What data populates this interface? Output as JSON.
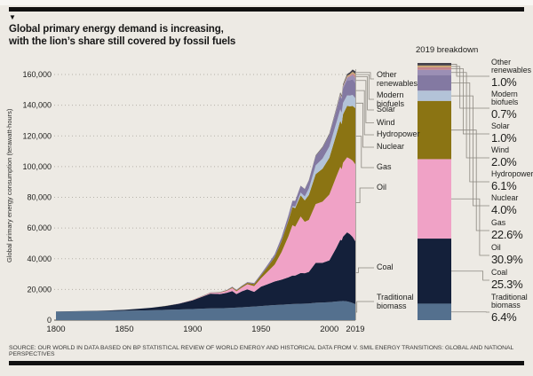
{
  "header": {
    "marker": "▼",
    "title_line1": "Global primary energy demand is increasing,",
    "title_line2": "with the lion’s share still covered by fossil fuels"
  },
  "footer": {
    "source": "SOURCE: OUR WORLD IN DATA BASED ON BP STATISTICAL REVIEW OF WORLD ENERGY AND HISTORICAL DATA FROM V. SMIL ENERGY TRANSITIONS: GLOBAL AND NATIONAL PERSPECTIVES"
  },
  "chart_data": {
    "type": "area",
    "stacked": true,
    "title": "Global primary energy demand is increasing, with the lion’s share still covered by fossil fuels",
    "xlabel": "",
    "ylabel": "Global primary energy consumption (terawatt-hours)",
    "ylim": [
      0,
      160000
    ],
    "xlim": [
      1800,
      2019
    ],
    "grid": "dotted-horizontal",
    "y_tick_labels": [
      "0",
      "20,000",
      "40,000",
      "60,000",
      "80,000",
      "100,000",
      "120,000",
      "140,000",
      "160,000"
    ],
    "y_tick_values": [
      0,
      20000,
      40000,
      60000,
      80000,
      100000,
      120000,
      140000,
      160000
    ],
    "x_tick_labels": [
      "1800",
      "1850",
      "1900",
      "1950",
      "2000",
      "2019"
    ],
    "x_tick_values": [
      1800,
      1850,
      1900,
      1950,
      2000,
      2019
    ],
    "years": [
      1800,
      1810,
      1820,
      1830,
      1840,
      1850,
      1860,
      1870,
      1880,
      1890,
      1900,
      1910,
      1913,
      1920,
      1925,
      1929,
      1932,
      1936,
      1940,
      1945,
      1950,
      1955,
      1960,
      1965,
      1970,
      1973,
      1975,
      1979,
      1982,
      1985,
      1990,
      1995,
      2000,
      2005,
      2008,
      2009,
      2010,
      2013,
      2015,
      2017,
      2019
    ],
    "series": [
      {
        "name": "Traditional biomass",
        "color": "#54708e",
        "values": [
          5556,
          5650,
          5750,
          5860,
          5980,
          6111,
          6280,
          6460,
          6700,
          6960,
          7222,
          7560,
          7660,
          7700,
          7900,
          8050,
          8150,
          8350,
          8600,
          8900,
          9200,
          9500,
          9800,
          10050,
          10300,
          10450,
          10550,
          10700,
          10750,
          10800,
          11300,
          11500,
          11700,
          12100,
          12350,
          12400,
          12500,
          12200,
          11800,
          11200,
          10400
        ]
      },
      {
        "name": "Coal",
        "color": "#14203a",
        "values": [
          97,
          120,
          160,
          240,
          360,
          569,
          1060,
          1640,
          2470,
          3700,
          5730,
          8660,
          9600,
          9300,
          9900,
          10900,
          8800,
          10400,
          11500,
          9500,
          12600,
          14000,
          15400,
          16300,
          17600,
          18600,
          18500,
          20000,
          19800,
          20600,
          26000,
          25800,
          27200,
          34800,
          40000,
          39500,
          41900,
          45000,
          44200,
          43000,
          41000
        ]
      },
      {
        "name": "Oil",
        "color": "#f0a2c6",
        "values": [
          0,
          0,
          0,
          0,
          0,
          0,
          2,
          10,
          30,
          90,
          180,
          410,
          560,
          890,
          1300,
          1900,
          1800,
          2500,
          3300,
          3800,
          5400,
          8200,
          11000,
          17900,
          26600,
          32800,
          31800,
          36800,
          33500,
          33900,
          38300,
          39900,
          42900,
          46400,
          47500,
          46400,
          48100,
          48900,
          49100,
          49700,
          50100
        ]
      },
      {
        "name": "Gas",
        "color": "#8b7413",
        "values": [
          0,
          0,
          0,
          0,
          0,
          0,
          0,
          0,
          10,
          30,
          64,
          140,
          180,
          230,
          350,
          550,
          600,
          750,
          870,
          1300,
          2000,
          3200,
          4800,
          7100,
          10300,
          11800,
          12100,
          13800,
          13900,
          16200,
          19500,
          21400,
          24000,
          27300,
          30000,
          29400,
          31600,
          33500,
          34200,
          35600,
          36600
        ]
      },
      {
        "name": "Nuclear",
        "color": "#b3c3d8",
        "values": [
          0,
          0,
          0,
          0,
          0,
          0,
          0,
          0,
          0,
          0,
          0,
          0,
          0,
          0,
          0,
          0,
          0,
          0,
          0,
          0,
          0,
          0,
          0,
          72,
          220,
          580,
          1000,
          1800,
          2600,
          4200,
          5700,
          6600,
          7300,
          7600,
          7500,
          7300,
          7400,
          6800,
          7000,
          7200,
          6500
        ]
      },
      {
        "name": "Hydropower",
        "color": "#8379a2",
        "values": [
          0,
          0,
          0,
          0,
          0,
          0,
          0,
          0,
          10,
          20,
          50,
          120,
          150,
          190,
          280,
          380,
          420,
          470,
          520,
          700,
          930,
          1400,
          1900,
          2500,
          3100,
          3500,
          3700,
          4400,
          4700,
          5200,
          6100,
          7000,
          7600,
          8300,
          9000,
          9100,
          9500,
          9900,
          10000,
          10200,
          9900
        ]
      },
      {
        "name": "Wind",
        "color": "#9b8fb5",
        "values": [
          0,
          0,
          0,
          0,
          0,
          0,
          0,
          0,
          0,
          0,
          0,
          0,
          0,
          0,
          0,
          0,
          0,
          0,
          0,
          0,
          0,
          0,
          0,
          0,
          0,
          0,
          0,
          0,
          0,
          0,
          10,
          30,
          90,
          290,
          620,
          740,
          960,
          1700,
          2300,
          2800,
          3240
        ]
      },
      {
        "name": "Solar",
        "color": "#c4858e",
        "values": [
          0,
          0,
          0,
          0,
          0,
          0,
          0,
          0,
          0,
          0,
          0,
          0,
          0,
          0,
          0,
          0,
          0,
          0,
          0,
          0,
          0,
          0,
          0,
          0,
          0,
          0,
          0,
          0,
          0,
          0,
          0,
          0,
          0,
          10,
          30,
          50,
          90,
          350,
          680,
          1100,
          1620
        ]
      },
      {
        "name": "Modern biofuels",
        "color": "#cba672",
        "values": [
          0,
          0,
          0,
          0,
          0,
          0,
          0,
          0,
          0,
          0,
          0,
          0,
          0,
          0,
          0,
          0,
          0,
          0,
          0,
          0,
          0,
          0,
          0,
          0,
          0,
          0,
          0,
          0,
          0,
          60,
          110,
          140,
          180,
          320,
          570,
          620,
          720,
          870,
          950,
          1040,
          1130
        ]
      },
      {
        "name": "Other renewables",
        "color": "#44414b",
        "values": [
          0,
          0,
          0,
          0,
          0,
          0,
          0,
          0,
          0,
          0,
          0,
          0,
          0,
          0,
          0,
          0,
          0,
          0,
          0,
          0,
          0,
          0,
          0,
          0,
          30,
          50,
          60,
          90,
          130,
          200,
          360,
          450,
          560,
          700,
          820,
          850,
          900,
          1100,
          1250,
          1430,
          1620
        ]
      }
    ]
  },
  "breakdown": {
    "title": "2019 breakdown",
    "items": [
      {
        "name": "Other renewables",
        "pct": 1.0,
        "pct_label": "1.0%",
        "color": "#44414b"
      },
      {
        "name": "Modern biofuels",
        "pct": 0.7,
        "pct_label": "0.7%",
        "color": "#cba672"
      },
      {
        "name": "Solar",
        "pct": 1.0,
        "pct_label": "1.0%",
        "color": "#c4858e"
      },
      {
        "name": "Wind",
        "pct": 2.0,
        "pct_label": "2.0%",
        "color": "#9b8fb5"
      },
      {
        "name": "Hydropower",
        "pct": 6.1,
        "pct_label": "6.1%",
        "color": "#8379a2"
      },
      {
        "name": "Nuclear",
        "pct": 4.0,
        "pct_label": "4.0%",
        "color": "#b3c3d8"
      },
      {
        "name": "Gas",
        "pct": 22.6,
        "pct_label": "22.6%",
        "color": "#8b7413"
      },
      {
        "name": "Oil",
        "pct": 30.9,
        "pct_label": "30.9%",
        "color": "#f0a2c6"
      },
      {
        "name": "Coal",
        "pct": 25.3,
        "pct_label": "25.3%",
        "color": "#14203a"
      },
      {
        "name": "Traditional biomass",
        "pct": 6.4,
        "pct_label": "6.4%",
        "color": "#54708e"
      }
    ]
  },
  "style": {
    "background": "#edeae4",
    "grid_color": "#b5b1a9",
    "leader_color": "#8c8880",
    "axis_color": "#55524c",
    "text_color": "#1d1d1b"
  }
}
